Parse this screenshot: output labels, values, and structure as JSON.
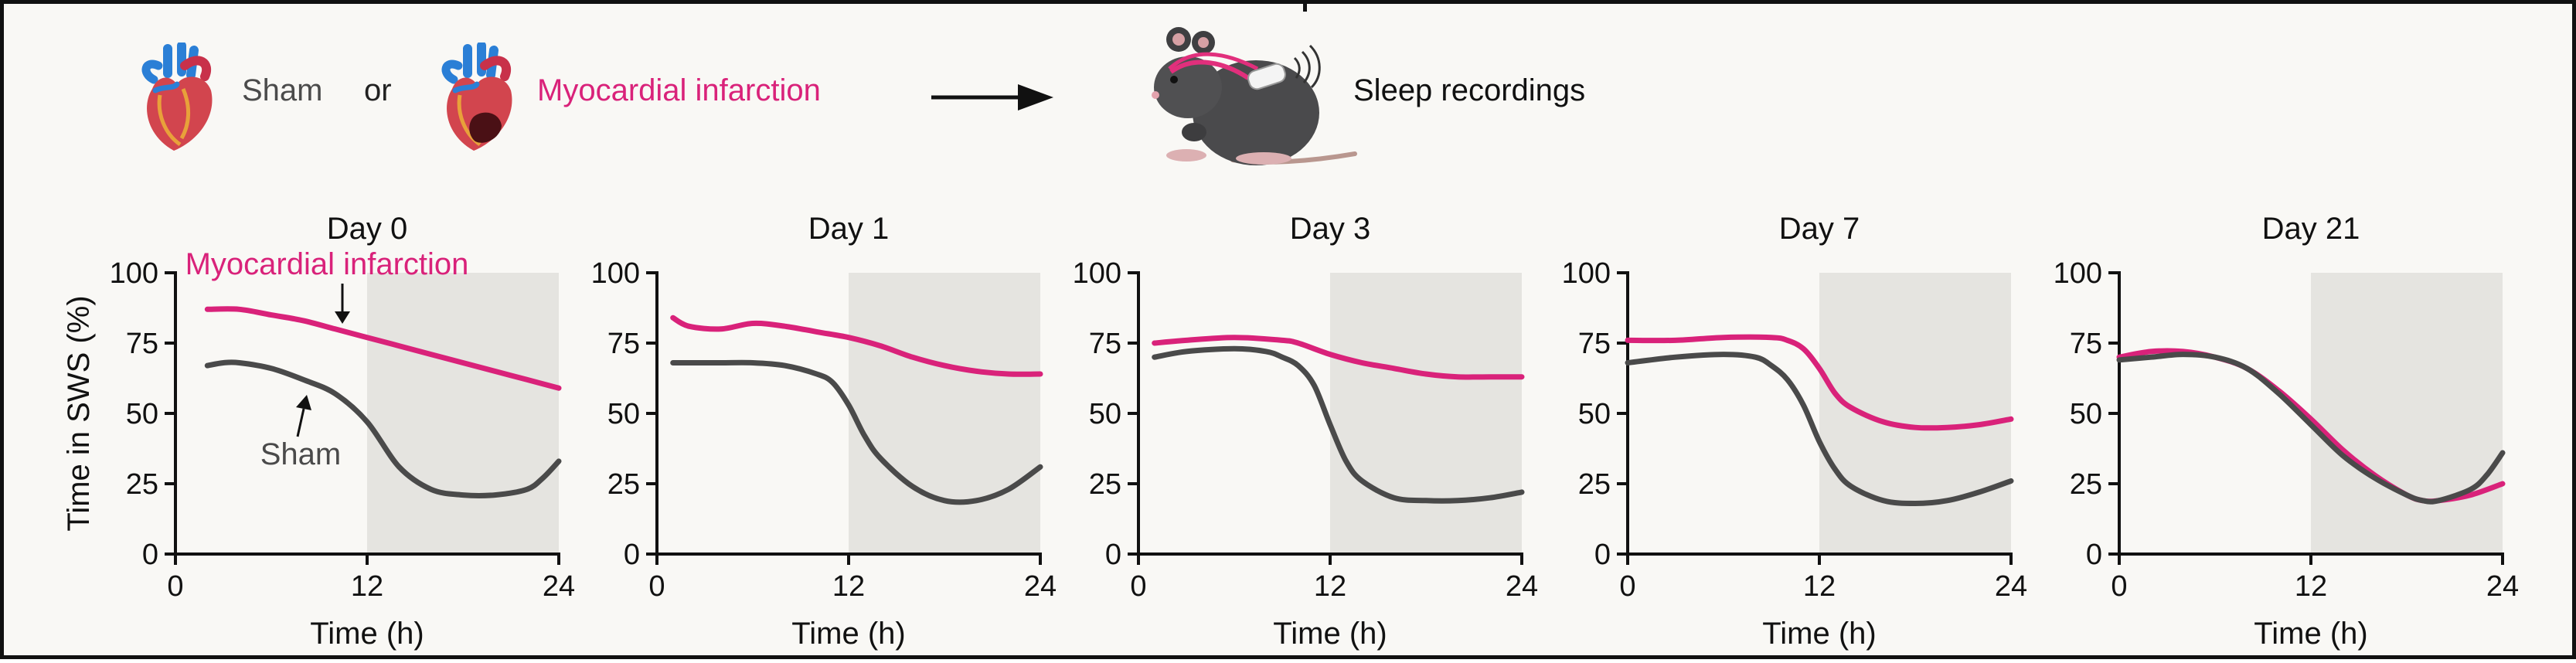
{
  "header": {
    "sham_label": "Sham",
    "or_label": "or",
    "mi_label": "Myocardial infarction",
    "recording_label": "Sleep recordings"
  },
  "colors": {
    "sham": "#4a4a4a",
    "mi": "#d9227a",
    "night_shading": "#e5e4e0",
    "background": "#f9f8f5"
  },
  "icons": [
    "heart-icon",
    "infarcted-heart-icon",
    "arrow-right-icon",
    "mouse-with-implant-icon"
  ],
  "chart_data": [
    {
      "type": "line",
      "title": "Day 0",
      "xlabel": "Time (h)",
      "ylabel": "Time in SWS (%)",
      "xlim": [
        0,
        24
      ],
      "ylim": [
        0,
        100
      ],
      "xticks": [
        0,
        12,
        24
      ],
      "yticks": [
        0,
        25,
        50,
        75,
        100
      ],
      "shaded_x_range": [
        12,
        24
      ],
      "grid": false,
      "legend": "annotations",
      "annotations": [
        {
          "text": "Myocardial infarction",
          "series": "Myocardial infarction"
        },
        {
          "text": "Sham",
          "series": "Sham"
        }
      ],
      "series": [
        {
          "name": "Myocardial infarction",
          "x": [
            2,
            4,
            6,
            8,
            10,
            12,
            14,
            16,
            18,
            20,
            22,
            24
          ],
          "y": [
            87,
            87,
            85,
            83,
            80,
            77,
            74,
            71,
            68,
            65,
            62,
            59
          ]
        },
        {
          "name": "Sham",
          "x": [
            2,
            3,
            4,
            6,
            8,
            10,
            12,
            14,
            16,
            18,
            20,
            22,
            23,
            24
          ],
          "y": [
            67,
            68,
            68,
            66,
            62,
            57,
            47,
            31,
            23,
            21,
            21,
            23,
            27,
            33
          ]
        }
      ]
    },
    {
      "type": "line",
      "title": "Day 1",
      "xlabel": "Time (h)",
      "ylabel": "Time in SWS (%)",
      "xlim": [
        0,
        24
      ],
      "ylim": [
        0,
        100
      ],
      "xticks": [
        0,
        12,
        24
      ],
      "yticks": [
        0,
        25,
        50,
        75,
        100
      ],
      "shaded_x_range": [
        12,
        24
      ],
      "grid": false,
      "series": [
        {
          "name": "Myocardial infarction",
          "x": [
            1,
            2,
            4,
            6,
            8,
            10,
            12,
            14,
            16,
            18,
            20,
            22,
            24
          ],
          "y": [
            84,
            81,
            80,
            82,
            81,
            79,
            77,
            74,
            70,
            67,
            65,
            64,
            64
          ]
        },
        {
          "name": "Sham",
          "x": [
            1,
            2,
            4,
            6,
            8,
            10,
            11,
            12,
            13,
            14,
            16,
            18,
            20,
            22,
            24
          ],
          "y": [
            68,
            68,
            68,
            68,
            67,
            64,
            61,
            53,
            42,
            34,
            24,
            19,
            19,
            23,
            31
          ]
        }
      ]
    },
    {
      "type": "line",
      "title": "Day 3",
      "xlabel": "Time (h)",
      "ylabel": "Time in SWS (%)",
      "xlim": [
        0,
        24
      ],
      "ylim": [
        0,
        100
      ],
      "xticks": [
        0,
        12,
        24
      ],
      "yticks": [
        0,
        25,
        50,
        75,
        100
      ],
      "shaded_x_range": [
        12,
        24
      ],
      "grid": false,
      "series": [
        {
          "name": "Myocardial infarction",
          "x": [
            1,
            3,
            6,
            9,
            10,
            12,
            14,
            16,
            18,
            20,
            22,
            24
          ],
          "y": [
            75,
            76,
            77,
            76,
            75,
            71,
            68,
            66,
            64,
            63,
            63,
            63
          ]
        },
        {
          "name": "Sham",
          "x": [
            1,
            3,
            6,
            8,
            9,
            10,
            11,
            12,
            13,
            14,
            16,
            18,
            20,
            22,
            24
          ],
          "y": [
            70,
            72,
            73,
            72,
            70,
            67,
            60,
            46,
            33,
            26,
            20,
            19,
            19,
            20,
            22
          ]
        }
      ]
    },
    {
      "type": "line",
      "title": "Day 7",
      "xlabel": "Time (h)",
      "ylabel": "Time in SWS (%)",
      "xlim": [
        0,
        24
      ],
      "ylim": [
        0,
        100
      ],
      "xticks": [
        0,
        12,
        24
      ],
      "yticks": [
        0,
        25,
        50,
        75,
        100
      ],
      "shaded_x_range": [
        12,
        24
      ],
      "grid": false,
      "series": [
        {
          "name": "Myocardial infarction",
          "x": [
            0,
            3,
            6,
            9,
            10,
            11,
            12,
            13,
            14,
            16,
            18,
            20,
            22,
            24
          ],
          "y": [
            76,
            76,
            77,
            77,
            76,
            73,
            66,
            57,
            52,
            47,
            45,
            45,
            46,
            48
          ]
        },
        {
          "name": "Sham",
          "x": [
            0,
            3,
            6,
            8,
            9,
            10,
            11,
            12,
            13,
            14,
            16,
            18,
            20,
            22,
            24
          ],
          "y": [
            68,
            70,
            71,
            70,
            67,
            62,
            53,
            40,
            30,
            24,
            19,
            18,
            19,
            22,
            26
          ]
        }
      ]
    },
    {
      "type": "line",
      "title": "Day 21",
      "xlabel": "Time (h)",
      "ylabel": "Time in SWS (%)",
      "xlim": [
        0,
        24
      ],
      "ylim": [
        0,
        100
      ],
      "xticks": [
        0,
        12,
        24
      ],
      "yticks": [
        0,
        25,
        50,
        75,
        100
      ],
      "shaded_x_range": [
        12,
        24
      ],
      "grid": false,
      "series": [
        {
          "name": "Myocardial infarction",
          "x": [
            0,
            2,
            4,
            6,
            8,
            10,
            12,
            14,
            16,
            18,
            19,
            20,
            22,
            24
          ],
          "y": [
            70,
            72,
            72,
            70,
            66,
            58,
            48,
            37,
            28,
            21,
            19,
            19,
            21,
            25
          ]
        },
        {
          "name": "Sham",
          "x": [
            0,
            2,
            4,
            6,
            8,
            10,
            12,
            14,
            16,
            18,
            19,
            20,
            22,
            23,
            24
          ],
          "y": [
            69,
            70,
            71,
            70,
            66,
            57,
            46,
            35,
            27,
            21,
            19,
            19,
            23,
            28,
            36
          ]
        }
      ]
    }
  ]
}
